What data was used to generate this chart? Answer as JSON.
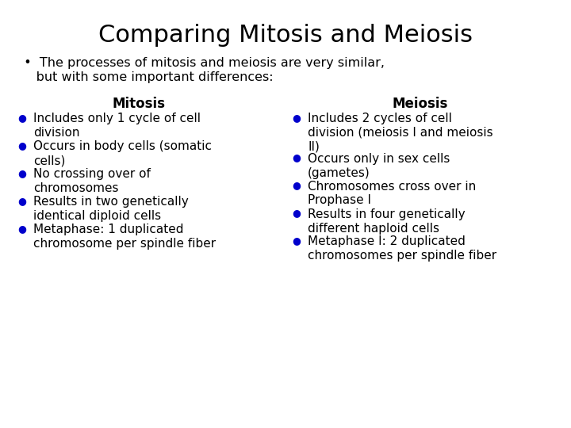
{
  "title": "Comparing Mitosis and Meiosis",
  "subtitle_line1": "  •  The processes of mitosis and meiosis are very similar,",
  "subtitle_line2": "     but with some important differences:",
  "bg_color": "#ffffff",
  "title_color": "#000000",
  "subtitle_color": "#000000",
  "bullet_color": "#0000cc",
  "text_color": "#000000",
  "col1_header": "Mitosis",
  "col2_header": "Meiosis",
  "col1_items": [
    "Includes only 1 cycle of cell\ndivision",
    "Occurs in body cells (somatic\ncells)",
    "No crossing over of\nchromosomes",
    "Results in two genetically\nidentical diploid cells",
    "Metaphase: 1 duplicated\nchromosome per spindle fiber"
  ],
  "col2_items": [
    "Includes 2 cycles of cell\ndivision (meiosis I and meiosis\nII)",
    "Occurs only in sex cells\n(gametes)",
    "Chromosomes cross over in\nProphase I",
    "Results in four genetically\ndifferent haploid cells",
    "Metaphase I: 2 duplicated\nchromosomes per spindle fiber"
  ],
  "title_fontsize": 22,
  "subtitle_fontsize": 11.5,
  "header_fontsize": 12,
  "body_fontsize": 11,
  "bullet_fontsize": 9
}
